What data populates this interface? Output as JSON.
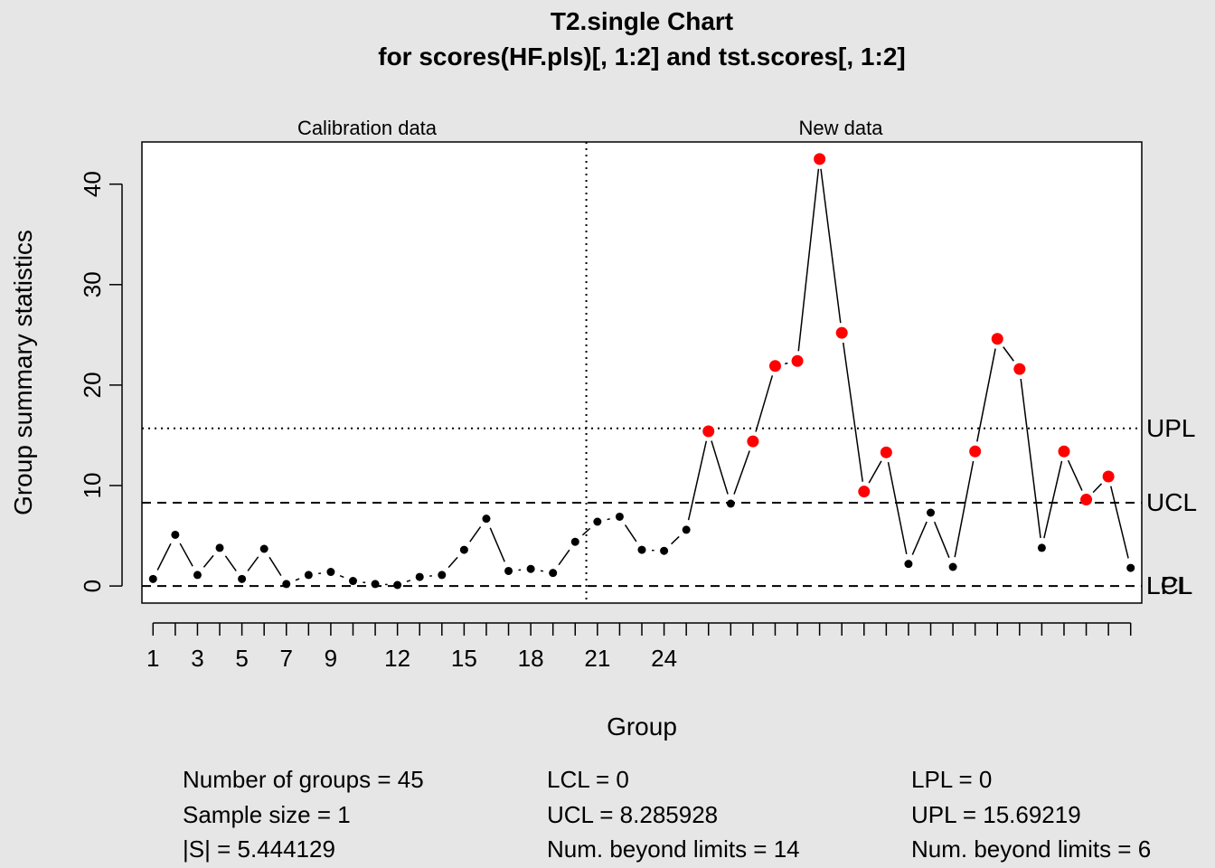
{
  "chart_data": {
    "type": "line",
    "title": "T2.single Chart",
    "subtitle": "for scores(HF.pls)[, 1:2] and tst.scores[, 1:2]",
    "xlabel": "Group",
    "ylabel": "Group summary statistics",
    "section_labels": [
      "Calibration data",
      "New data"
    ],
    "calibration_count": 20,
    "xlim": [
      0.5,
      45.5
    ],
    "ylim": [
      -1.7,
      44.2
    ],
    "y_ticks": [
      0,
      10,
      20,
      30,
      40
    ],
    "x_ticks_labeled": [
      {
        "x": 1,
        "label": "1"
      },
      {
        "x": 3,
        "label": "3"
      },
      {
        "x": 5,
        "label": "5"
      },
      {
        "x": 7,
        "label": "7"
      },
      {
        "x": 9,
        "label": "9"
      },
      {
        "x": 12,
        "label": "12"
      },
      {
        "x": 15,
        "label": "15"
      },
      {
        "x": 18,
        "label": "18"
      },
      {
        "x": 21,
        "label": "21"
      },
      {
        "x": 24,
        "label": "24"
      }
    ],
    "x_tick_count": 45,
    "limits": [
      {
        "name": "UPL",
        "value": 15.69219,
        "style": "dotted",
        "label": "UPL"
      },
      {
        "name": "UCL",
        "value": 8.285928,
        "style": "dashed",
        "label": "UCL"
      },
      {
        "name": "LCL",
        "value": 0,
        "style": "dashed",
        "label": "LCL"
      },
      {
        "name": "LPL",
        "value": 0,
        "style": "dashed",
        "label": "LPL"
      }
    ],
    "series": [
      {
        "values": [
          0.7,
          5.1,
          1.1,
          3.8,
          0.7,
          3.7,
          0.2,
          1.1,
          1.4,
          0.5,
          0.2,
          0.1,
          0.9,
          1.1,
          3.6,
          6.7,
          1.5,
          1.7,
          1.3,
          4.4,
          6.4,
          6.9,
          3.6,
          3.5,
          5.6,
          15.4,
          8.2,
          14.4,
          21.9,
          22.4,
          42.5,
          25.2,
          9.4,
          13.3,
          2.2,
          7.3,
          1.9,
          13.4,
          24.6,
          21.6,
          3.8,
          13.4,
          8.6,
          10.9,
          1.8
        ],
        "beyond_limits": [
          26,
          28,
          29,
          30,
          31,
          32,
          33,
          34,
          38,
          39,
          40,
          42,
          43,
          44
        ]
      }
    ],
    "colors": {
      "point": "#000000",
      "violation": "#ff0000",
      "limit_label": "#4d4d4d",
      "background": "#e6e6e6",
      "plot_bg": "#ffffff"
    }
  },
  "stats": {
    "col1": [
      "Number of groups = 45",
      "Sample size = 1",
      "|S| = 5.444129"
    ],
    "col2": [
      "LCL = 0",
      "UCL = 8.285928",
      "Num. beyond limits = 14"
    ],
    "col3": [
      "LPL = 0",
      "UPL = 15.69219",
      "Num. beyond limits = 6"
    ]
  }
}
